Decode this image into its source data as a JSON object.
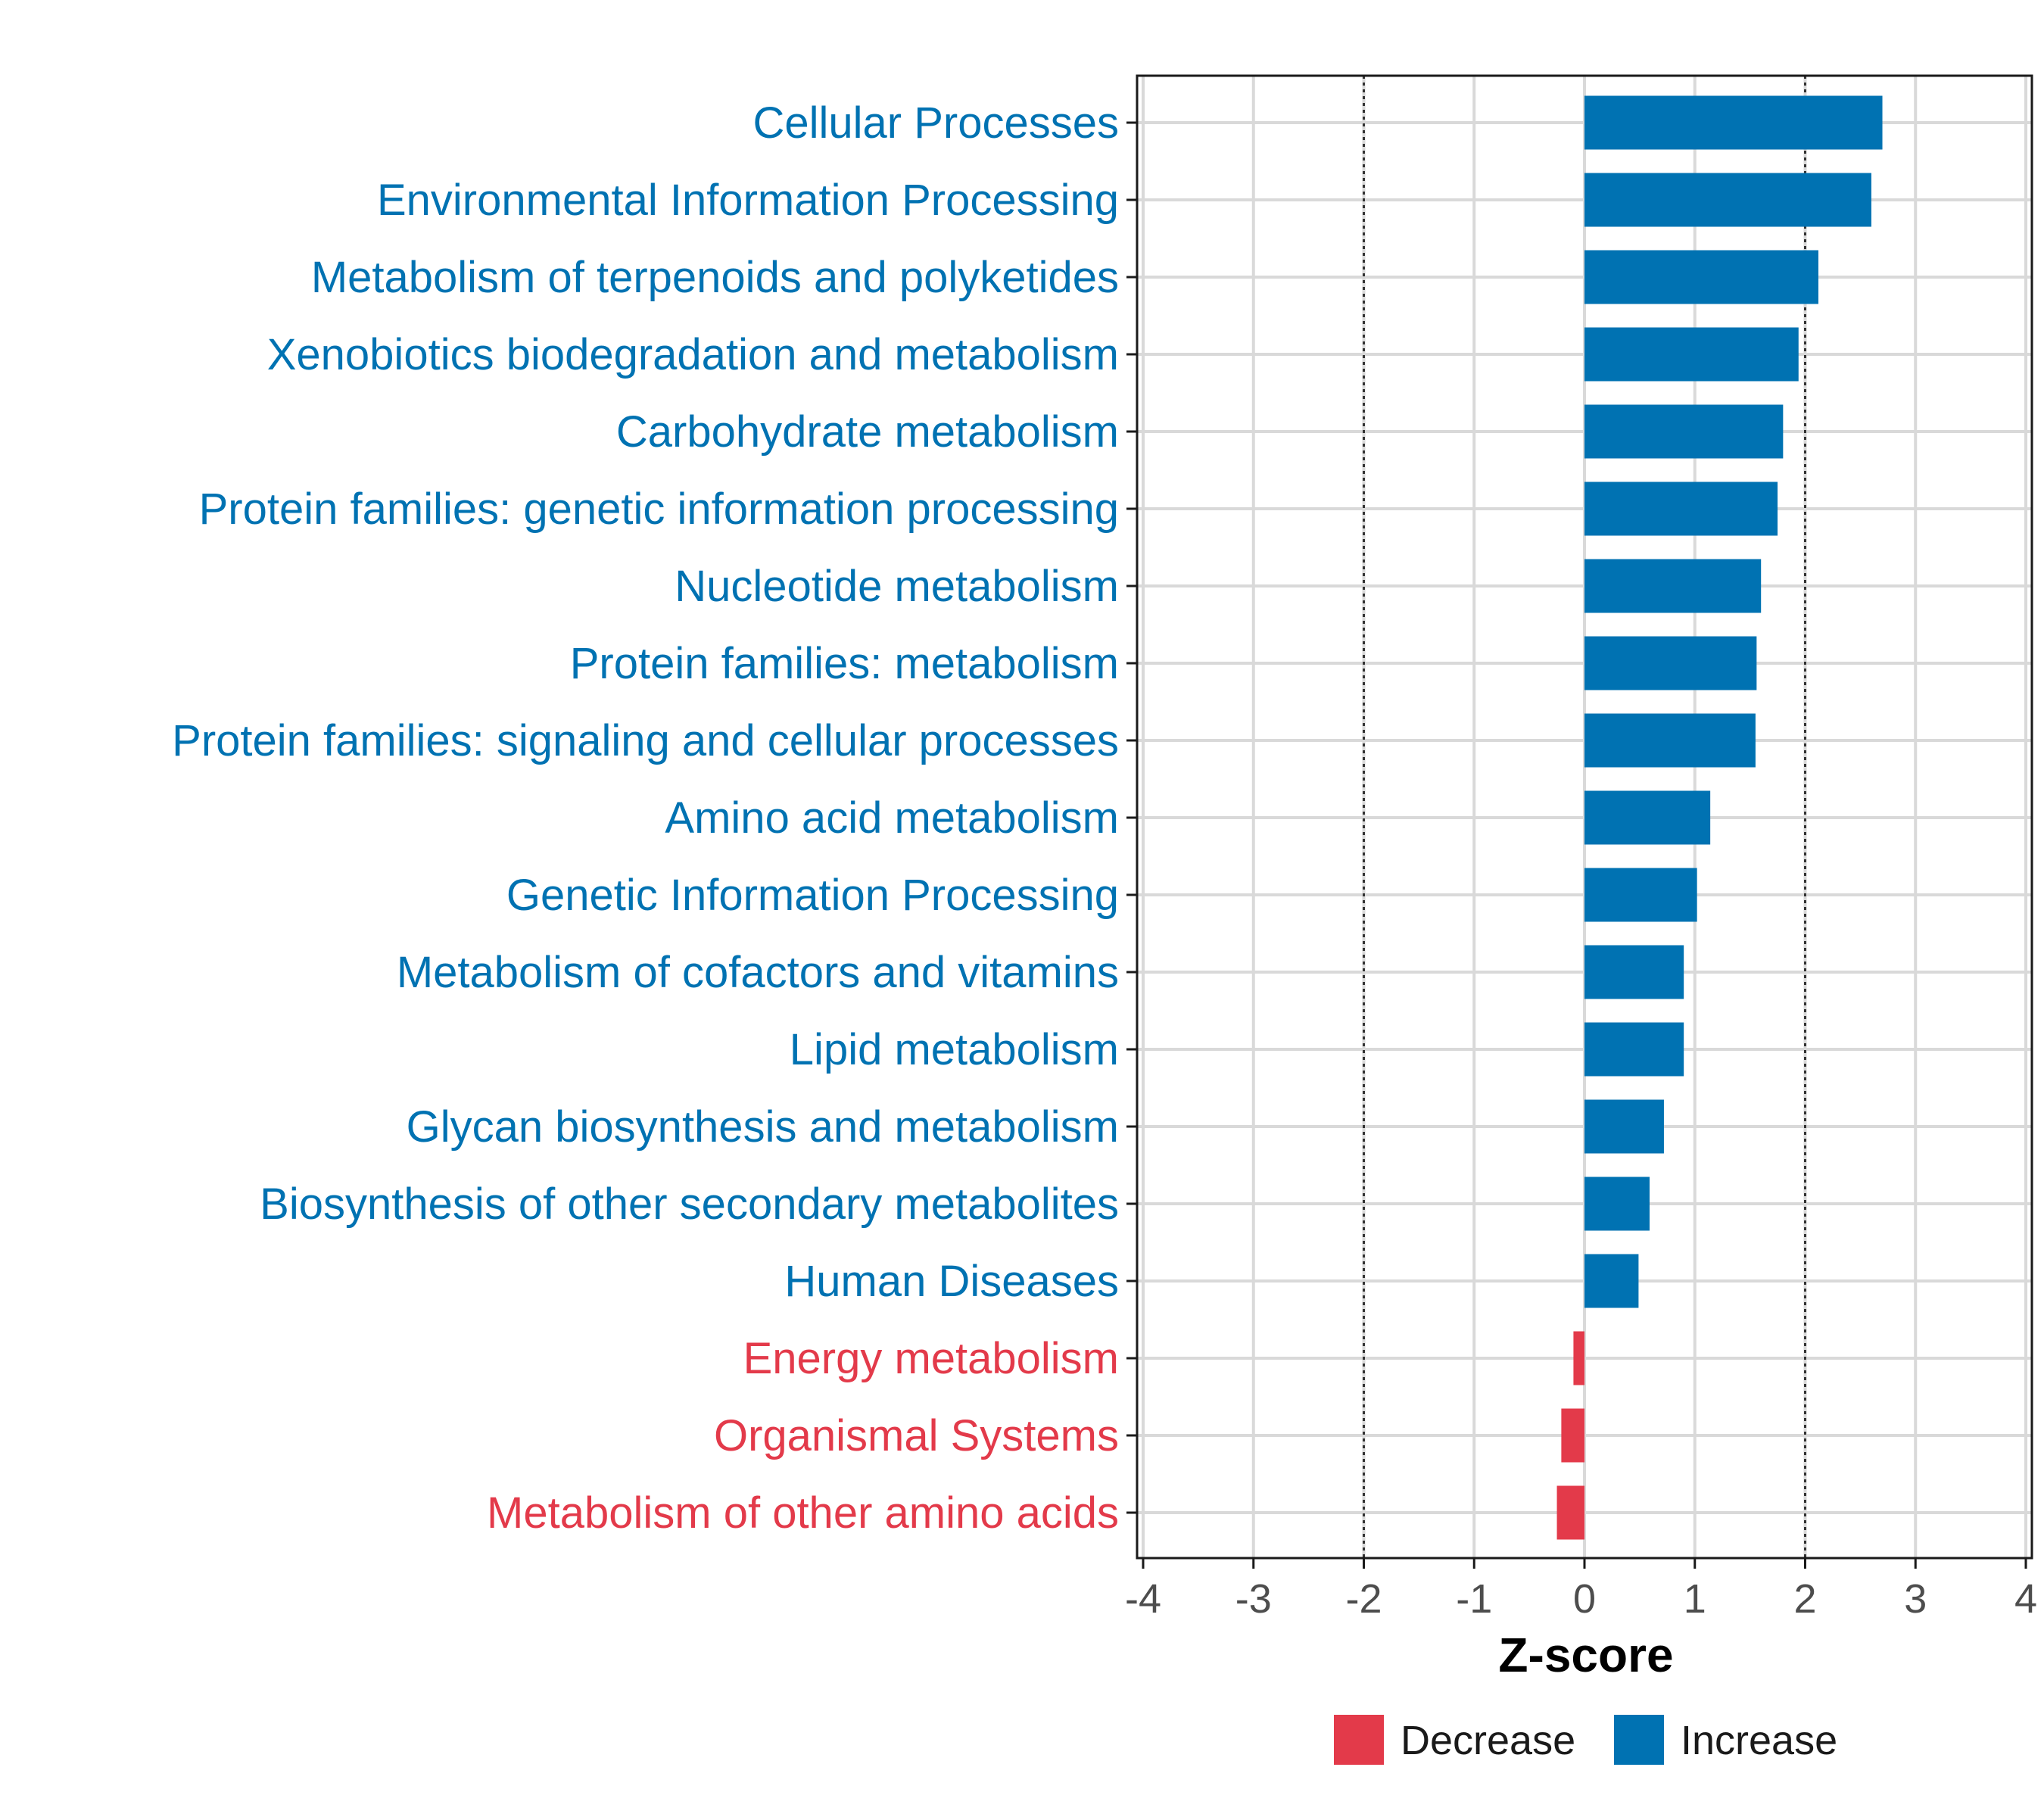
{
  "chart_data": {
    "type": "bar",
    "orientation": "horizontal",
    "title": "",
    "xlabel": "Z-score",
    "ylabel": "",
    "xlim": [
      -4,
      4
    ],
    "xticks": [
      -4,
      -3,
      -2,
      -1,
      0,
      1,
      2,
      3,
      4
    ],
    "xtick_labels": [
      "-4",
      "-3",
      "-2",
      "-1",
      "0",
      "1",
      "2",
      "3",
      "4"
    ],
    "reference_lines": [
      -2,
      2
    ],
    "grid": true,
    "categories": [
      "Cellular Processes",
      "Environmental Information Processing",
      "Metabolism of terpenoids and polyketides",
      "Xenobiotics biodegradation and metabolism",
      "Carbohydrate metabolism",
      "Protein families: genetic information processing",
      "Nucleotide metabolism",
      "Protein families: metabolism",
      "Protein families: signaling and cellular processes",
      "Amino acid metabolism",
      "Genetic Information Processing",
      "Metabolism of cofactors and vitamins",
      "Lipid metabolism",
      "Glycan biosynthesis and metabolism",
      "Biosynthesis of other secondary metabolites",
      "Human Diseases",
      "Energy metabolism",
      "Organismal Systems",
      "Metabolism of other amino acids"
    ],
    "values": [
      2.7,
      2.6,
      2.12,
      1.94,
      1.8,
      1.75,
      1.6,
      1.56,
      1.55,
      1.14,
      1.02,
      0.9,
      0.9,
      0.72,
      0.59,
      0.49,
      -0.1,
      -0.21,
      -0.25
    ],
    "groups": [
      "Increase",
      "Increase",
      "Increase",
      "Increase",
      "Increase",
      "Increase",
      "Increase",
      "Increase",
      "Increase",
      "Increase",
      "Increase",
      "Increase",
      "Increase",
      "Increase",
      "Increase",
      "Increase",
      "Decrease",
      "Decrease",
      "Decrease"
    ],
    "colors": {
      "Increase": "#0072b2",
      "Decrease": "#e33a4a"
    },
    "legend": {
      "position": "bottom",
      "entries": [
        {
          "label": "Decrease",
          "color": "#e33a4a"
        },
        {
          "label": "Increase",
          "color": "#0072b2"
        }
      ]
    }
  }
}
